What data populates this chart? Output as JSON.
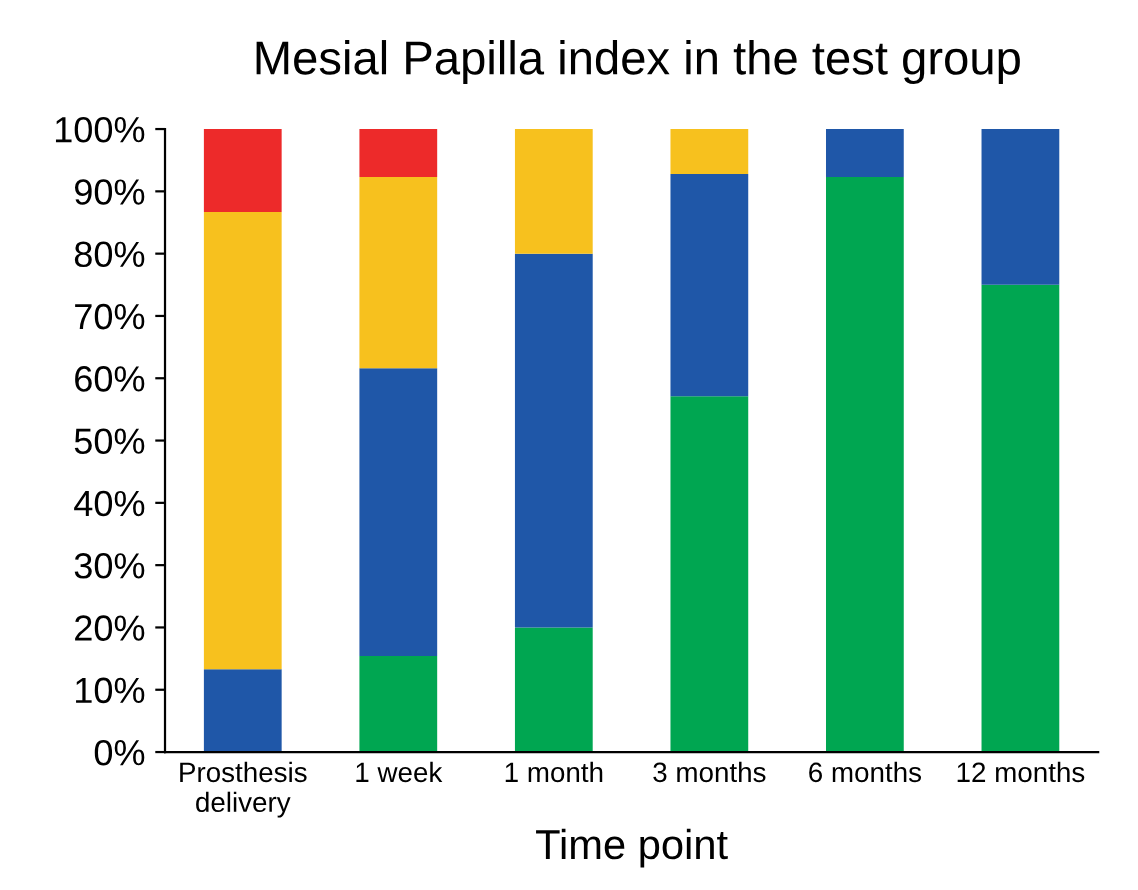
{
  "chart_data": {
    "type": "bar",
    "title": "Mesial Papilla index in the test group",
    "xlabel": "Time point",
    "categories": [
      "Prosthesis\ndelivery",
      "1 week",
      "1 month",
      "3 months",
      "6 months",
      "12 months"
    ],
    "stacked": true,
    "series": [
      {
        "color": "#00a651",
        "values": [
          0,
          15.4,
          20,
          57.1,
          92.3,
          75
        ]
      },
      {
        "color": "#1f57a8",
        "values": [
          13.3,
          46.2,
          60,
          35.7,
          7.7,
          25
        ]
      },
      {
        "color": "#f7c11e",
        "values": [
          73.4,
          30.7,
          20,
          7.2,
          0,
          0
        ]
      },
      {
        "color": "#ed2a2a",
        "values": [
          13.3,
          7.7,
          0,
          0,
          0,
          0
        ]
      }
    ],
    "ylim": [
      0,
      100
    ],
    "yticks": [
      {
        "value": 0,
        "label": "0%"
      },
      {
        "value": 10,
        "label": "10%"
      },
      {
        "value": 20,
        "label": "20%"
      },
      {
        "value": 30,
        "label": "30%"
      },
      {
        "value": 40,
        "label": "40%"
      },
      {
        "value": 50,
        "label": "50%"
      },
      {
        "value": 60,
        "label": "60%"
      },
      {
        "value": 70,
        "label": "70%"
      },
      {
        "value": 80,
        "label": "80%"
      },
      {
        "value": 90,
        "label": "90%"
      },
      {
        "value": 100,
        "label": "100%"
      }
    ],
    "grid": false
  }
}
